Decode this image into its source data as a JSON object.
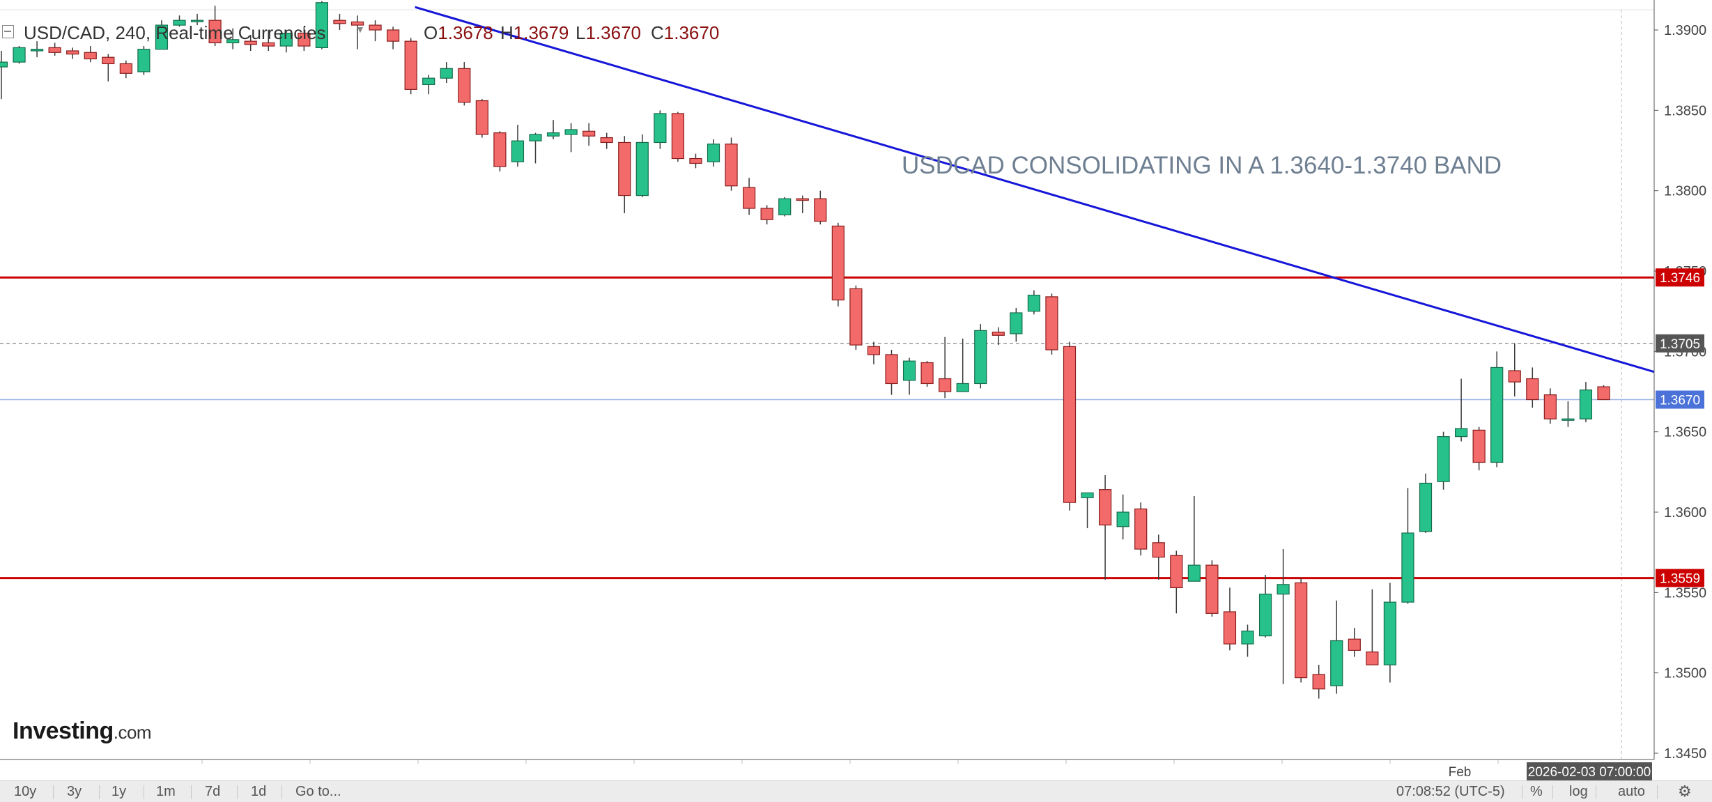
{
  "header": {
    "symbol": "USD/CAD, 240, Real-time Currencies",
    "open_label": "O",
    "open": "1.3678",
    "high_label": "H",
    "high": "1.3679",
    "low_label": "L",
    "low": "1.3670",
    "close_label": "C",
    "close": "1.3670"
  },
  "annotation": "USDCAD CONSOLIDATING IN A 1.3640-1.3740 BAND",
  "logo": {
    "brand": "Investing",
    "suffix": ".com"
  },
  "bottom_bar": {
    "ranges": [
      "10y",
      "3y",
      "1y",
      "1m",
      "7d",
      "1d"
    ],
    "goto": "Go to...",
    "clock": "07:08:52 (UTC-5)",
    "percent": "%",
    "log": "log",
    "auto": "auto"
  },
  "chart_data": {
    "type": "candlestick",
    "symbol": "USD/CAD",
    "interval": "240",
    "ylim": [
      1.344,
      1.3918
    ],
    "y_ticks": [
      "1.3900",
      "1.3850",
      "1.3800",
      "1.3750",
      "1.3700",
      "1.3650",
      "1.3600",
      "1.3550",
      "1.3500",
      "1.3450"
    ],
    "x_label": "Feb",
    "crosshair_time": "2026-02-03 07:00:00",
    "candles": [
      {
        "o": 1.3877,
        "h": 1.3887,
        "l": 1.3857,
        "c": 1.388
      },
      {
        "o": 1.388,
        "h": 1.389,
        "l": 1.3879,
        "c": 1.3889
      },
      {
        "o": 1.3887,
        "h": 1.3893,
        "l": 1.3883,
        "c": 1.3888
      },
      {
        "o": 1.3889,
        "h": 1.3892,
        "l": 1.3884,
        "c": 1.3886
      },
      {
        "o": 1.3887,
        "h": 1.3889,
        "l": 1.3882,
        "c": 1.3885
      },
      {
        "o": 1.3886,
        "h": 1.389,
        "l": 1.388,
        "c": 1.3882
      },
      {
        "o": 1.3883,
        "h": 1.3885,
        "l": 1.3868,
        "c": 1.3879
      },
      {
        "o": 1.3879,
        "h": 1.3881,
        "l": 1.387,
        "c": 1.3873
      },
      {
        "o": 1.3874,
        "h": 1.389,
        "l": 1.3872,
        "c": 1.3888
      },
      {
        "o": 1.3888,
        "h": 1.3906,
        "l": 1.3888,
        "c": 1.3903
      },
      {
        "o": 1.3903,
        "h": 1.3909,
        "l": 1.3902,
        "c": 1.3906
      },
      {
        "o": 1.3906,
        "h": 1.391,
        "l": 1.3903,
        "c": 1.3906
      },
      {
        "o": 1.3906,
        "h": 1.3915,
        "l": 1.389,
        "c": 1.3892
      },
      {
        "o": 1.3892,
        "h": 1.3901,
        "l": 1.3888,
        "c": 1.3894
      },
      {
        "o": 1.3893,
        "h": 1.3897,
        "l": 1.3887,
        "c": 1.3891
      },
      {
        "o": 1.3892,
        "h": 1.39,
        "l": 1.3887,
        "c": 1.389
      },
      {
        "o": 1.389,
        "h": 1.39,
        "l": 1.3886,
        "c": 1.3898
      },
      {
        "o": 1.3898,
        "h": 1.3902,
        "l": 1.3887,
        "c": 1.389
      },
      {
        "o": 1.3889,
        "h": 1.3918,
        "l": 1.3888,
        "c": 1.3917
      },
      {
        "o": 1.3906,
        "h": 1.391,
        "l": 1.39,
        "c": 1.3904
      },
      {
        "o": 1.3905,
        "h": 1.3909,
        "l": 1.3888,
        "c": 1.3903
      },
      {
        "o": 1.3903,
        "h": 1.3906,
        "l": 1.3893,
        "c": 1.39
      },
      {
        "o": 1.39,
        "h": 1.3902,
        "l": 1.3888,
        "c": 1.3893
      },
      {
        "o": 1.3893,
        "h": 1.3895,
        "l": 1.386,
        "c": 1.3863
      },
      {
        "o": 1.3866,
        "h": 1.3872,
        "l": 1.386,
        "c": 1.387
      },
      {
        "o": 1.387,
        "h": 1.388,
        "l": 1.3867,
        "c": 1.3876
      },
      {
        "o": 1.3876,
        "h": 1.388,
        "l": 1.3853,
        "c": 1.3855
      },
      {
        "o": 1.3856,
        "h": 1.3857,
        "l": 1.3833,
        "c": 1.3835
      },
      {
        "o": 1.3836,
        "h": 1.3837,
        "l": 1.3812,
        "c": 1.3815
      },
      {
        "o": 1.3818,
        "h": 1.3841,
        "l": 1.3815,
        "c": 1.3831
      },
      {
        "o": 1.3831,
        "h": 1.3836,
        "l": 1.3817,
        "c": 1.3835
      },
      {
        "o": 1.3834,
        "h": 1.3844,
        "l": 1.3832,
        "c": 1.3836
      },
      {
        "o": 1.3835,
        "h": 1.3842,
        "l": 1.3824,
        "c": 1.3838
      },
      {
        "o": 1.3837,
        "h": 1.3842,
        "l": 1.3828,
        "c": 1.3834
      },
      {
        "o": 1.3833,
        "h": 1.3836,
        "l": 1.3826,
        "c": 1.383
      },
      {
        "o": 1.383,
        "h": 1.3834,
        "l": 1.3786,
        "c": 1.3797
      },
      {
        "o": 1.3797,
        "h": 1.3835,
        "l": 1.3796,
        "c": 1.383
      },
      {
        "o": 1.383,
        "h": 1.385,
        "l": 1.3826,
        "c": 1.3848
      },
      {
        "o": 1.3848,
        "h": 1.3849,
        "l": 1.3818,
        "c": 1.382
      },
      {
        "o": 1.382,
        "h": 1.3823,
        "l": 1.3814,
        "c": 1.3817
      },
      {
        "o": 1.3818,
        "h": 1.3832,
        "l": 1.3815,
        "c": 1.3829
      },
      {
        "o": 1.3829,
        "h": 1.3833,
        "l": 1.38,
        "c": 1.3803
      },
      {
        "o": 1.3802,
        "h": 1.3808,
        "l": 1.3785,
        "c": 1.3789
      },
      {
        "o": 1.3789,
        "h": 1.3791,
        "l": 1.3779,
        "c": 1.3782
      },
      {
        "o": 1.3785,
        "h": 1.3796,
        "l": 1.3784,
        "c": 1.3795
      },
      {
        "o": 1.3795,
        "h": 1.3797,
        "l": 1.3786,
        "c": 1.3794
      },
      {
        "o": 1.3795,
        "h": 1.38,
        "l": 1.3779,
        "c": 1.3781
      },
      {
        "o": 1.3778,
        "h": 1.378,
        "l": 1.3728,
        "c": 1.3732
      },
      {
        "o": 1.3739,
        "h": 1.3741,
        "l": 1.3701,
        "c": 1.3704
      },
      {
        "o": 1.3703,
        "h": 1.3706,
        "l": 1.3692,
        "c": 1.3698
      },
      {
        "o": 1.3698,
        "h": 1.3701,
        "l": 1.3673,
        "c": 1.368
      },
      {
        "o": 1.3682,
        "h": 1.3696,
        "l": 1.3673,
        "c": 1.3694
      },
      {
        "o": 1.3693,
        "h": 1.3694,
        "l": 1.3678,
        "c": 1.368
      },
      {
        "o": 1.3683,
        "h": 1.3709,
        "l": 1.3671,
        "c": 1.3675
      },
      {
        "o": 1.3675,
        "h": 1.3708,
        "l": 1.3678,
        "c": 1.368
      },
      {
        "o": 1.368,
        "h": 1.3717,
        "l": 1.3677,
        "c": 1.3713
      },
      {
        "o": 1.3712,
        "h": 1.3715,
        "l": 1.3704,
        "c": 1.371
      },
      {
        "o": 1.3711,
        "h": 1.3727,
        "l": 1.3706,
        "c": 1.3724
      },
      {
        "o": 1.3725,
        "h": 1.3738,
        "l": 1.3723,
        "c": 1.3735
      },
      {
        "o": 1.3734,
        "h": 1.3736,
        "l": 1.3698,
        "c": 1.3701
      },
      {
        "o": 1.3703,
        "h": 1.3706,
        "l": 1.3601,
        "c": 1.3606
      },
      {
        "o": 1.3609,
        "h": 1.3612,
        "l": 1.359,
        "c": 1.3612
      },
      {
        "o": 1.3614,
        "h": 1.3623,
        "l": 1.3558,
        "c": 1.3592
      },
      {
        "o": 1.3591,
        "h": 1.3611,
        "l": 1.3583,
        "c": 1.36
      },
      {
        "o": 1.3602,
        "h": 1.3606,
        "l": 1.3573,
        "c": 1.3577
      },
      {
        "o": 1.3581,
        "h": 1.3586,
        "l": 1.3558,
        "c": 1.3572
      },
      {
        "o": 1.3573,
        "h": 1.3576,
        "l": 1.3537,
        "c": 1.3553
      },
      {
        "o": 1.3557,
        "h": 1.361,
        "l": 1.356,
        "c": 1.3567
      },
      {
        "o": 1.3567,
        "h": 1.357,
        "l": 1.3535,
        "c": 1.3537
      },
      {
        "o": 1.3538,
        "h": 1.3553,
        "l": 1.3514,
        "c": 1.3518
      },
      {
        "o": 1.3518,
        "h": 1.353,
        "l": 1.351,
        "c": 1.3526
      },
      {
        "o": 1.3523,
        "h": 1.3561,
        "l": 1.3522,
        "c": 1.3549
      },
      {
        "o": 1.3549,
        "h": 1.3577,
        "l": 1.3493,
        "c": 1.3555
      },
      {
        "o": 1.3556,
        "h": 1.3559,
        "l": 1.3494,
        "c": 1.3497
      },
      {
        "o": 1.3499,
        "h": 1.3505,
        "l": 1.3484,
        "c": 1.349
      },
      {
        "o": 1.3492,
        "h": 1.3545,
        "l": 1.3487,
        "c": 1.352
      },
      {
        "o": 1.3521,
        "h": 1.3528,
        "l": 1.351,
        "c": 1.3514
      },
      {
        "o": 1.3513,
        "h": 1.3552,
        "l": 1.3506,
        "c": 1.3505
      },
      {
        "o": 1.3505,
        "h": 1.3556,
        "l": 1.3494,
        "c": 1.3544
      },
      {
        "o": 1.3544,
        "h": 1.3615,
        "l": 1.3543,
        "c": 1.3587
      },
      {
        "o": 1.3588,
        "h": 1.3624,
        "l": 1.3587,
        "c": 1.3618
      },
      {
        "o": 1.3619,
        "h": 1.365,
        "l": 1.3614,
        "c": 1.3647
      },
      {
        "o": 1.3647,
        "h": 1.3683,
        "l": 1.3644,
        "c": 1.3652
      },
      {
        "o": 1.3651,
        "h": 1.3653,
        "l": 1.3626,
        "c": 1.3631
      },
      {
        "o": 1.3631,
        "h": 1.37,
        "l": 1.3628,
        "c": 1.369
      },
      {
        "o": 1.3688,
        "h": 1.3705,
        "l": 1.3672,
        "c": 1.3681
      },
      {
        "o": 1.3683,
        "h": 1.369,
        "l": 1.3665,
        "c": 1.367
      },
      {
        "o": 1.3673,
        "h": 1.3677,
        "l": 1.3655,
        "c": 1.3658
      },
      {
        "o": 1.3658,
        "h": 1.3669,
        "l": 1.3653,
        "c": 1.3658
      },
      {
        "o": 1.3658,
        "h": 1.3681,
        "l": 1.3656,
        "c": 1.3676
      },
      {
        "o": 1.3678,
        "h": 1.3679,
        "l": 1.367,
        "c": 1.367
      }
    ],
    "horizontal_lines": [
      {
        "value": 1.3746,
        "label": "1.3746",
        "color": "#cc0000",
        "style": "solid"
      },
      {
        "value": 1.3559,
        "label": "1.3559",
        "color": "#cc0000",
        "style": "solid"
      },
      {
        "value": 1.3705,
        "label": "1.3705",
        "color": "#9a9a9a",
        "style": "dashed"
      },
      {
        "value": 1.367,
        "label": "1.3670",
        "color": "#9db6e6",
        "style": "solid",
        "tag_color": "#4a72d8"
      }
    ],
    "trendline": {
      "color": "#1616d8",
      "from": {
        "candle": 23,
        "price": 1.3915
      },
      "to": {
        "candle": 92,
        "price": 1.369
      }
    },
    "colors": {
      "up": "#27c28b",
      "down": "#f36a6a",
      "up_border": "#146d4c",
      "down_border": "#8a1e1e",
      "wick": "#3a3a3a"
    }
  }
}
